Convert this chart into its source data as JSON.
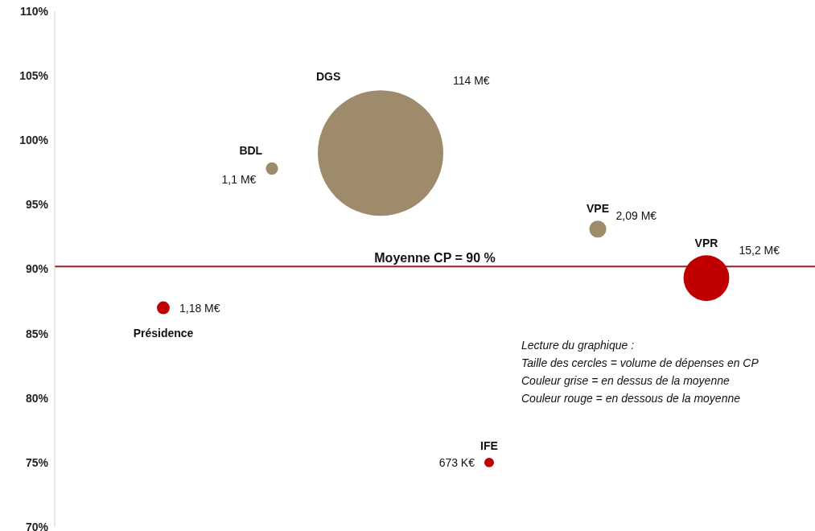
{
  "chart_data": {
    "type": "bubble",
    "categories": [
      null,
      null,
      null,
      null,
      null,
      null
    ],
    "series": [
      {
        "name": "Présidence",
        "color": "#c00000",
        "values": [
          87,
          null,
          null,
          null,
          null,
          null
        ],
        "sizes": [
          0.0104,
          null,
          null,
          null,
          null,
          null
        ]
      },
      {
        "name": "BDL",
        "color": "#9e8b6c",
        "values": [
          null,
          97.8,
          null,
          null,
          null,
          null
        ],
        "sizes": [
          null,
          0.0096,
          null,
          null,
          null,
          null
        ]
      },
      {
        "name": "DGS",
        "color": "#9e8b6c",
        "values": [
          null,
          null,
          99,
          null,
          null,
          null
        ],
        "sizes": [
          null,
          null,
          1,
          null,
          null,
          null
        ]
      },
      {
        "name": "IFE",
        "color": "#c00000",
        "values": [
          null,
          null,
          null,
          75,
          null,
          null
        ],
        "sizes": [
          null,
          null,
          null,
          0.0059,
          null,
          null
        ]
      },
      {
        "name": "VPE",
        "color": "#9e8b6c",
        "values": [
          null,
          null,
          null,
          null,
          93.1,
          null
        ],
        "sizes": [
          null,
          null,
          null,
          null,
          0.0183,
          null
        ]
      },
      {
        "name": "VPR",
        "color": "#c00000",
        "values": [
          null,
          null,
          null,
          null,
          null,
          89.3
        ],
        "sizes": [
          null,
          null,
          null,
          null,
          null,
          0.133
        ]
      }
    ],
    "ylim": [
      70,
      110
    ],
    "yticks": [
      {
        "value": 70,
        "label": "70%"
      },
      {
        "value": 75,
        "label": "75%"
      },
      {
        "value": 80,
        "label": "80%"
      },
      {
        "value": 85,
        "label": "85%"
      },
      {
        "value": 90,
        "label": "90%"
      },
      {
        "value": 95,
        "label": "95%"
      },
      {
        "value": 100,
        "label": "100%"
      },
      {
        "value": 105,
        "label": "105%"
      },
      {
        "value": 110,
        "label": "110%"
      }
    ],
    "grid": false,
    "legend": false,
    "ref_lines": [
      {
        "axis": "y",
        "value": 90.2,
        "label": "Moyenne CP  = 90 %",
        "color": "#a31a2a"
      }
    ],
    "annotations": [
      "1,18 M€",
      "1,1 M€",
      "114 M€",
      "673 K€",
      "2,09 M€",
      "15,2 M€",
      "Lecture du graphique :",
      "Taille des cercles = volume de dépenses en CP",
      "Couleur grise = en dessus de la moyenne",
      "Couleur rouge = en dessous de la moyenne"
    ]
  }
}
